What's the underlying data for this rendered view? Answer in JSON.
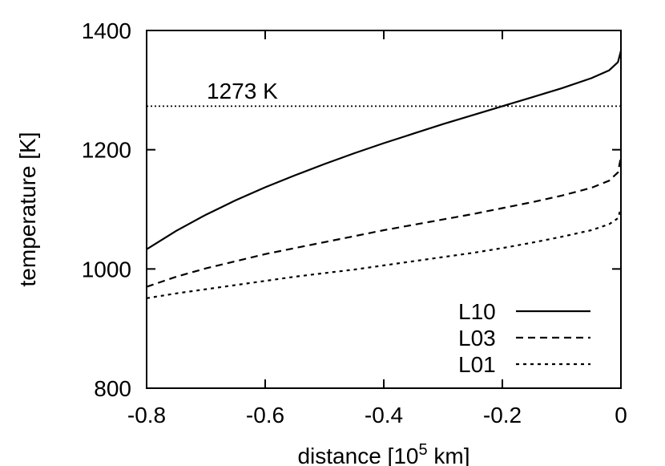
{
  "chart_data": {
    "type": "line",
    "xlabel": "distance [10",
    "xlabel_sup": "5",
    "xlabel_end": " km]",
    "ylabel": "temperature [K]",
    "xlim": [
      -0.8,
      0
    ],
    "ylim": [
      800,
      1400
    ],
    "xticks": [
      -0.8,
      -0.6,
      -0.4,
      -0.2,
      0
    ],
    "xtick_labels": [
      "-0.8",
      "-0.6",
      "-0.4",
      "-0.2",
      "0"
    ],
    "yticks": [
      800,
      1000,
      1200,
      1400
    ],
    "ytick_labels": [
      "800",
      "1000",
      "1200",
      "1400"
    ],
    "grid": false,
    "legend_position": "bottom-right",
    "reference_line": {
      "y": 1273,
      "label": "1273 K",
      "style": "dotted"
    },
    "series": [
      {
        "name": "L10",
        "style": "solid",
        "x": [
          -0.8,
          -0.75,
          -0.7,
          -0.65,
          -0.6,
          -0.55,
          -0.5,
          -0.45,
          -0.4,
          -0.35,
          -0.3,
          -0.25,
          -0.2,
          -0.15,
          -0.1,
          -0.05,
          -0.02,
          -0.005,
          0
        ],
        "y": [
          1033,
          1064,
          1091,
          1115,
          1137,
          1157,
          1176,
          1194,
          1211,
          1227,
          1243,
          1258,
          1273,
          1288,
          1303,
          1320,
          1333,
          1347,
          1366
        ]
      },
      {
        "name": "L03",
        "style": "dashed",
        "x": [
          -0.8,
          -0.75,
          -0.7,
          -0.65,
          -0.6,
          -0.55,
          -0.5,
          -0.45,
          -0.4,
          -0.35,
          -0.3,
          -0.25,
          -0.2,
          -0.15,
          -0.1,
          -0.05,
          -0.02,
          -0.005,
          0
        ],
        "y": [
          970,
          987,
          1001,
          1013,
          1025,
          1035,
          1045,
          1055,
          1065,
          1074,
          1083,
          1092,
          1102,
          1112,
          1123,
          1136,
          1148,
          1162,
          1188
        ]
      },
      {
        "name": "L01",
        "style": "dotted",
        "x": [
          -0.8,
          -0.75,
          -0.7,
          -0.65,
          -0.6,
          -0.55,
          -0.5,
          -0.45,
          -0.4,
          -0.35,
          -0.3,
          -0.25,
          -0.2,
          -0.15,
          -0.1,
          -0.05,
          -0.02,
          -0.005,
          0
        ],
        "y": [
          951,
          959,
          966,
          973,
          980,
          987,
          993,
          999,
          1006,
          1013,
          1020,
          1027,
          1035,
          1044,
          1054,
          1065,
          1075,
          1085,
          1102
        ]
      }
    ]
  }
}
